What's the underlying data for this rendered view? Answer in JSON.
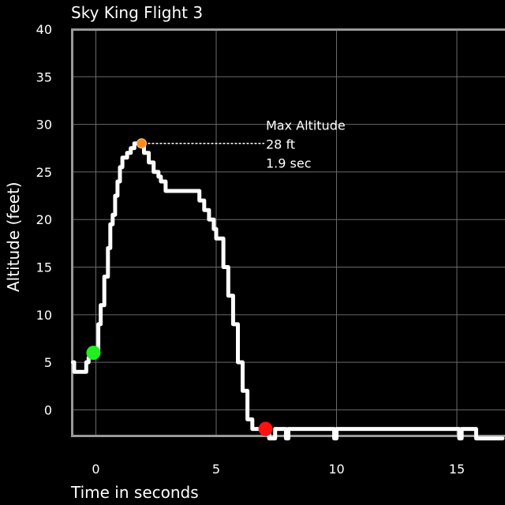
{
  "chart_data": {
    "type": "line",
    "title": "Sky King Flight 3",
    "xlabel": "Time in seconds",
    "ylabel": "Altitude (feet)",
    "xlim": [
      -1,
      17
    ],
    "ylim": [
      -2.7,
      40
    ],
    "x_ticks": [
      "0",
      "5",
      "10",
      "15"
    ],
    "y_ticks": [
      "0",
      "5",
      "10",
      "15",
      "20",
      "25",
      "30",
      "35",
      "40"
    ],
    "grid": true,
    "series": [
      {
        "x": [
          -0.95,
          -0.9,
          -0.8,
          -0.5,
          -0.4,
          -0.3,
          -0.2,
          -0.1,
          0.0,
          0.1,
          0.2,
          0.35,
          0.5,
          0.6,
          0.7,
          0.8,
          0.9,
          1.0,
          1.1,
          1.3,
          1.45,
          1.6,
          1.7,
          1.8,
          1.9,
          2.0,
          2.1,
          2.2,
          2.3,
          2.4,
          2.5,
          2.6,
          2.7,
          2.8,
          2.9,
          3.0,
          3.1,
          3.2,
          3.3,
          3.4,
          4.2,
          4.3,
          4.4,
          4.5,
          4.6,
          4.7,
          4.8,
          4.9,
          5.0,
          5.1,
          5.3,
          5.5,
          5.7,
          5.9,
          6.1,
          6.3,
          6.5,
          6.7,
          6.9,
          7.0,
          7.2,
          7.35,
          7.45,
          7.6,
          7.8,
          7.9,
          8.0,
          8.1,
          8.2,
          9.7,
          9.8,
          9.9,
          10.0,
          14.9,
          15.0,
          15.1,
          15.2,
          15.6,
          15.7,
          15.8,
          16.9
        ],
        "y": [
          5,
          4,
          4,
          4,
          5,
          5.5,
          6,
          6,
          6,
          9,
          11,
          14,
          17,
          19.5,
          20.5,
          22.5,
          24,
          25.5,
          26.5,
          27,
          27.5,
          28,
          28,
          28,
          28,
          27,
          27,
          26,
          26,
          25,
          25,
          24.5,
          24,
          24,
          23,
          23,
          23,
          23,
          23,
          23,
          23,
          22,
          22,
          21,
          21,
          20,
          20,
          19,
          18,
          18,
          15,
          12,
          9,
          5,
          2,
          -1,
          -2,
          -2,
          -2,
          -2,
          -3,
          -3,
          -2,
          -2,
          -2,
          -3,
          -2,
          -2,
          -2,
          -2,
          -2,
          -3,
          -2,
          -2,
          -2,
          -3,
          -2,
          -2,
          -2,
          -3,
          -3
        ]
      }
    ],
    "markers": [
      {
        "name": "launch",
        "x": -0.1,
        "y": 6,
        "color": "#22ee22"
      },
      {
        "name": "max-altitude",
        "x": 1.9,
        "y": 28,
        "color": "#ff8a1c"
      },
      {
        "name": "landing",
        "x": 7.05,
        "y": -2,
        "color": "#ff1111"
      }
    ],
    "annotation": {
      "lines": [
        "Max Altitude",
        "28 ft",
        "1.9  sec"
      ],
      "x": 7,
      "y": 28
    }
  },
  "colors": {
    "background": "#000000",
    "line": "#ffffff",
    "grid": "#6a6a6a",
    "frame": "#999999",
    "text": "#ffffff"
  }
}
